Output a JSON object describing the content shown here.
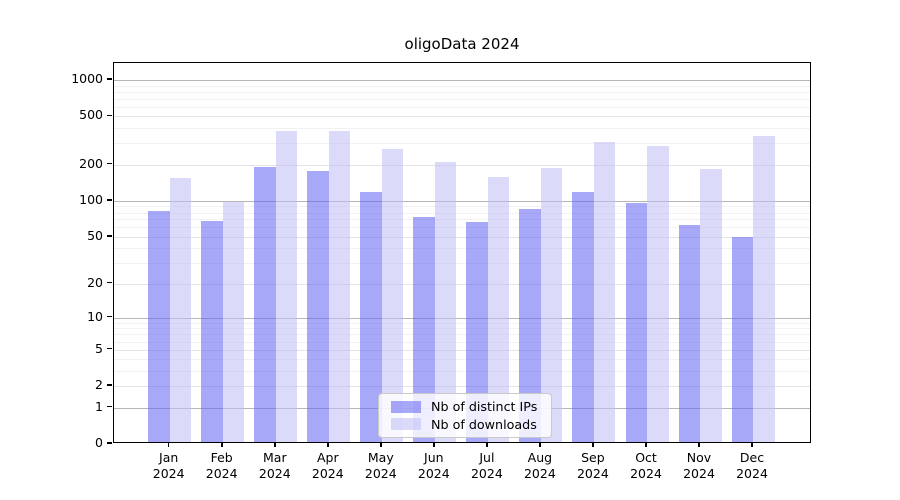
{
  "colors": {
    "bar_distinct_ips": "rgba(100,100,242,0.56)",
    "bar_distinct_ips_flat": "#a8a8f8",
    "bar_downloads": "rgba(190,190,244,0.56)",
    "bar_downloads_flat": "#d9d9f8",
    "grid_minor": "#f2f2f2",
    "grid_mid": "#e4e4e4",
    "grid_major": "#b6b6b6",
    "axis": "#000000",
    "background": "#ffffff",
    "legend_border": "#c9c9c9"
  },
  "chart_data": {
    "type": "bar",
    "title": "oligoData 2024",
    "year": "2024",
    "months": [
      "Jan",
      "Feb",
      "Mar",
      "Apr",
      "May",
      "Jun",
      "Jul",
      "Aug",
      "Sep",
      "Oct",
      "Nov",
      "Dec"
    ],
    "categories": [
      "Jan 2024",
      "Feb 2024",
      "Mar 2024",
      "Apr 2024",
      "May 2024",
      "Jun 2024",
      "Jul 2024",
      "Aug 2024",
      "Sep 2024",
      "Oct 2024",
      "Nov 2024",
      "Dec 2024"
    ],
    "series": [
      {
        "name": "Nb of distinct IPs",
        "values": [
          80,
          66,
          185,
          170,
          113,
          71,
          64,
          83,
          115,
          93,
          61,
          48
        ]
      },
      {
        "name": "Nb of downloads",
        "values": [
          148,
          95,
          368,
          362,
          259,
          203,
          152,
          179,
          296,
          273,
          177,
          330
        ]
      }
    ],
    "y_axis": {
      "scale": "log10(value+1)",
      "tick_values": [
        0,
        1,
        2,
        5,
        10,
        20,
        50,
        100,
        200,
        500,
        1000
      ],
      "tick_labels": [
        "0",
        "1",
        "2",
        "5",
        "10",
        "20",
        "50",
        "100",
        "200",
        "500",
        "1000"
      ],
      "minor_gridlines": [
        3,
        4,
        6,
        7,
        8,
        9,
        30,
        40,
        60,
        70,
        80,
        90,
        300,
        400,
        600,
        700,
        800,
        900
      ],
      "major_gridlines": [
        1,
        10,
        100,
        1000
      ],
      "ylim": [
        0,
        1200
      ]
    },
    "grid": true,
    "legend_position": "inside-bottom-center"
  }
}
